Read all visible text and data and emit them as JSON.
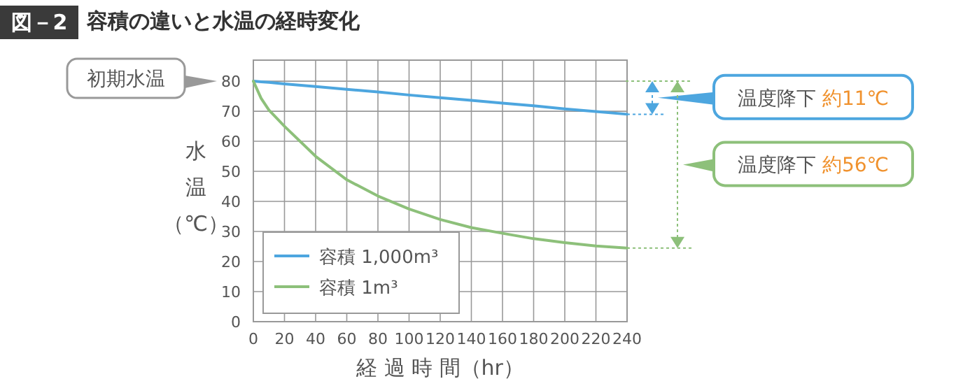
{
  "chart_data": {
    "type": "line",
    "title": "容積の違いと水温の経時変化",
    "xlabel": "経 過 時 間（hr）",
    "ylabel": "水温（℃）",
    "x": [
      0,
      5,
      10,
      20,
      40,
      60,
      80,
      100,
      120,
      140,
      160,
      180,
      200,
      220,
      240
    ],
    "series": [
      {
        "name": "容積 1,000m³",
        "color": "#4da6df",
        "values": [
          80,
          79.8,
          79.6,
          79.1,
          78.2,
          77.3,
          76.4,
          75.4,
          74.5,
          73.6,
          72.7,
          71.8,
          70.8,
          69.9,
          69
        ]
      },
      {
        "name": "容積 1m³",
        "color": "#8dc07a",
        "values": [
          80,
          74.3,
          70.4,
          65,
          55,
          47.2,
          41.8,
          37.5,
          34,
          31.3,
          29.4,
          27.6,
          26.3,
          25.2,
          24.5
        ]
      }
    ],
    "xlim": [
      0,
      240
    ],
    "ylim": [
      0,
      87
    ],
    "xticks": [
      0,
      20,
      40,
      60,
      80,
      100,
      120,
      140,
      160,
      180,
      200,
      220,
      240
    ],
    "yticks": [
      0,
      10,
      20,
      30,
      40,
      50,
      60,
      70,
      80
    ],
    "grid": true,
    "legend": "bottom left",
    "annotations": [
      "図－2",
      "初期水温",
      "温度降下 約11℃",
      "温度降下 約56℃"
    ]
  }
}
